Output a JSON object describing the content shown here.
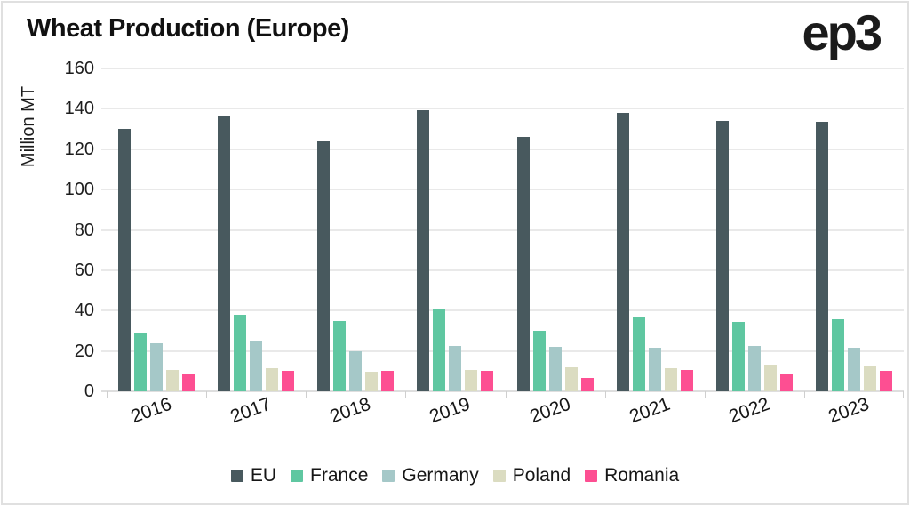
{
  "header": {
    "title": "Wheat Production (Europe)",
    "logo_text": "ep3"
  },
  "chart_data": {
    "type": "bar",
    "title": "Wheat Production (Europe)",
    "xlabel": "",
    "ylabel": "Million MT",
    "categories": [
      "2016",
      "2017",
      "2018",
      "2019",
      "2020",
      "2021",
      "2022",
      "2023"
    ],
    "series": [
      {
        "name": "EU",
        "color": "#48595e",
        "values": [
          130,
          136.5,
          124,
          139.5,
          126,
          138,
          134,
          133.5
        ]
      },
      {
        "name": "France",
        "color": "#5fc7a1",
        "values": [
          28.5,
          38,
          35,
          40.5,
          30,
          36.5,
          34.5,
          35.5
        ]
      },
      {
        "name": "Germany",
        "color": "#a5c8c8",
        "values": [
          24,
          24.5,
          20,
          22.5,
          22,
          21.5,
          22.5,
          21.5
        ]
      },
      {
        "name": "Poland",
        "color": "#dbdcc1",
        "values": [
          10.5,
          11.5,
          9.5,
          10.5,
          12,
          11.5,
          13,
          12.5
        ]
      },
      {
        "name": "Romania",
        "color": "#fd4f92",
        "values": [
          8.5,
          10,
          10,
          10,
          6.5,
          10.5,
          8.5,
          10
        ]
      }
    ],
    "ylim": [
      0,
      160
    ],
    "yticks": [
      0,
      20,
      40,
      60,
      80,
      100,
      120,
      140,
      160
    ],
    "grid": "horizontal",
    "legend_position": "bottom"
  },
  "colors": {
    "grid": "#e9e9e9",
    "baseline": "#dedede",
    "frame_border": "#e0e0e0",
    "text": "#151515",
    "background": "#ffffff"
  }
}
